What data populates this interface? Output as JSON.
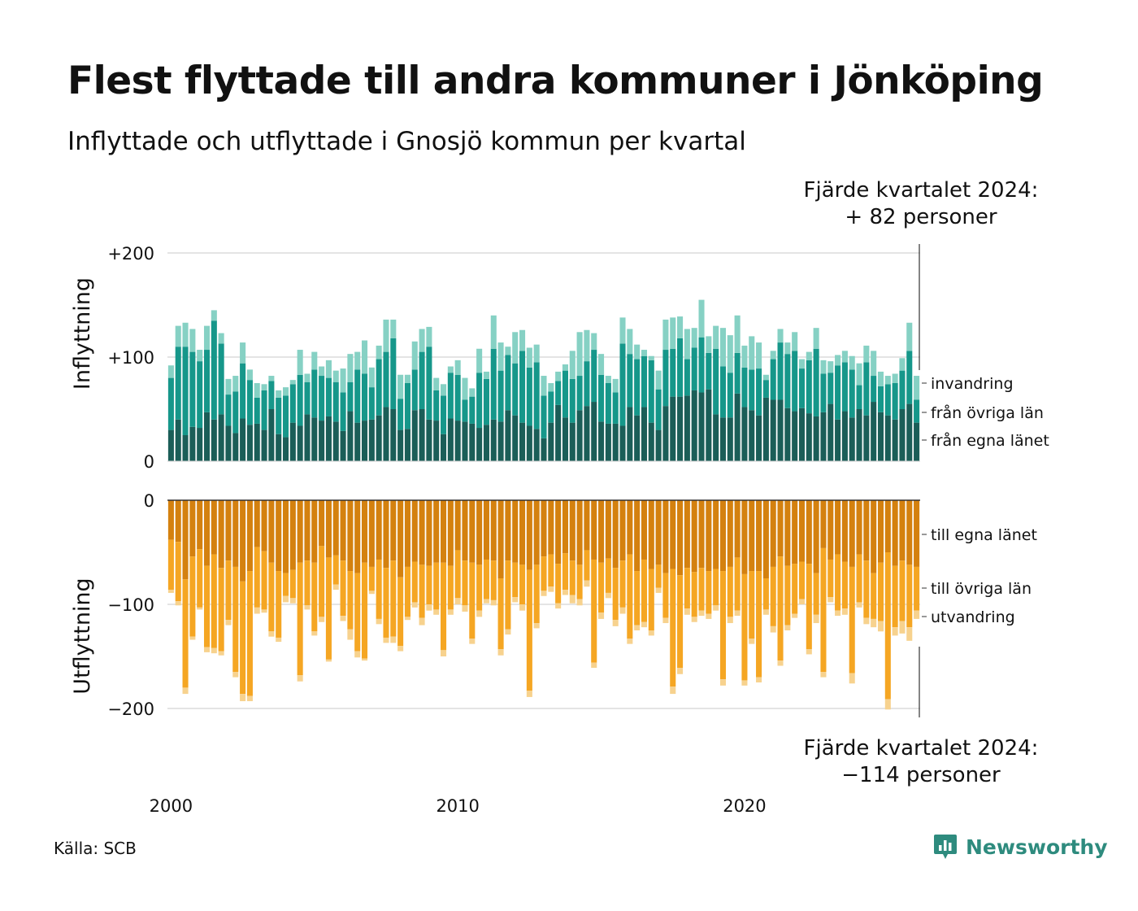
{
  "header": {
    "title": "Flest flyttade till andra kommuner i Jönköping",
    "subtitle": "Inflyttade och utflyttade i Gnosjö kommun per kvartal"
  },
  "annotations": {
    "top_line1": "Fjärde kvartalet 2024:",
    "top_line2": "+ 82 personer",
    "bottom_line1": "Fjärde kvartalet 2024:",
    "bottom_line2": "−114 personer"
  },
  "footer": {
    "source": "Källa: SCB",
    "logo": "Newsworthy"
  },
  "colors": {
    "in_egna": "#1b5e58",
    "in_ovriga": "#16978a",
    "in_invandring": "#86d1c4",
    "ut_egna": "#d4810f",
    "ut_ovriga": "#f5a623",
    "ut_utvandring": "#f7d28e",
    "grid": "#e4e4e4",
    "logo": "#2e8b7e"
  },
  "chart_data": [
    {
      "type": "bar",
      "stacked": true,
      "ylabel": "Inflyttning",
      "ylim": [
        0,
        200
      ],
      "yticks": [
        0,
        100,
        200
      ],
      "ytick_labels": [
        "0",
        "+100",
        "+200"
      ],
      "x_labels": [
        "2000",
        "2010",
        "2020"
      ],
      "x_start": 2000,
      "x_end": 2024.75,
      "series_labels": [
        "från egna länet",
        "från övriga län",
        "invandring"
      ],
      "series": [
        {
          "name": "från egna länet",
          "values": [
            30,
            40,
            25,
            33,
            32,
            47,
            40,
            45,
            34,
            27,
            41,
            35,
            36,
            30,
            50,
            26,
            23,
            37,
            34,
            45,
            42,
            39,
            43,
            38,
            29,
            48,
            37,
            39,
            40,
            44,
            52,
            50,
            30,
            31,
            49,
            50,
            40,
            39,
            26,
            41,
            39,
            38,
            36,
            32,
            35,
            40,
            38,
            49,
            44,
            37,
            34,
            31,
            22,
            37,
            54,
            42,
            37,
            49,
            53,
            57,
            38,
            36,
            36,
            34,
            52,
            44,
            52,
            37,
            30,
            53,
            62,
            62,
            63,
            68,
            66,
            69,
            45,
            42,
            42,
            65,
            52,
            49,
            44,
            61,
            59,
            59,
            51,
            48,
            51,
            46,
            43,
            47,
            55,
            40,
            48,
            42,
            50,
            44,
            57,
            47,
            44,
            40,
            50,
            55,
            37
          ]
        },
        {
          "name": "från övriga län",
          "values": [
            50,
            70,
            85,
            72,
            64,
            60,
            95,
            68,
            30,
            40,
            53,
            43,
            25,
            38,
            27,
            35,
            40,
            37,
            49,
            31,
            46,
            43,
            37,
            38,
            37,
            28,
            51,
            45,
            31,
            54,
            53,
            68,
            30,
            44,
            39,
            55,
            70,
            29,
            37,
            44,
            44,
            21,
            26,
            53,
            44,
            68,
            49,
            53,
            50,
            69,
            56,
            64,
            41,
            30,
            23,
            45,
            42,
            33,
            43,
            50,
            45,
            39,
            30,
            79,
            51,
            54,
            49,
            60,
            39,
            54,
            46,
            56,
            35,
            41,
            53,
            35,
            63,
            49,
            43,
            39,
            38,
            39,
            45,
            17,
            39,
            55,
            52,
            58,
            38,
            51,
            65,
            37,
            30,
            52,
            47,
            46,
            23,
            51,
            25,
            25,
            30,
            35,
            37,
            51,
            22
          ]
        },
        {
          "name": "invandring",
          "values": [
            12,
            20,
            23,
            22,
            11,
            23,
            10,
            10,
            15,
            15,
            20,
            10,
            14,
            6,
            5,
            7,
            8,
            4,
            24,
            8,
            17,
            9,
            17,
            11,
            23,
            27,
            17,
            32,
            19,
            13,
            31,
            18,
            23,
            8,
            27,
            22,
            19,
            12,
            11,
            6,
            14,
            21,
            8,
            23,
            7,
            32,
            27,
            8,
            30,
            20,
            19,
            17,
            19,
            8,
            9,
            6,
            27,
            42,
            30,
            16,
            20,
            7,
            13,
            25,
            24,
            14,
            6,
            4,
            18,
            29,
            30,
            21,
            29,
            19,
            36,
            16,
            22,
            37,
            36,
            36,
            21,
            32,
            25,
            5,
            8,
            13,
            11,
            18,
            9,
            8,
            20,
            13,
            11,
            10,
            11,
            13,
            21,
            16,
            24,
            14,
            8,
            9,
            12,
            27,
            23
          ]
        }
      ]
    },
    {
      "type": "bar",
      "stacked": true,
      "ylabel": "Utflyttning",
      "ylim": [
        -200,
        0
      ],
      "yticks": [
        0,
        -100,
        -200
      ],
      "ytick_labels": [
        "0",
        "−100",
        "−200"
      ],
      "x_labels": [
        "2000",
        "2010",
        "2020"
      ],
      "x_start": 2000,
      "x_end": 2024.75,
      "series_labels": [
        "till egna länet",
        "till övriga län",
        "utvandring"
      ],
      "series": [
        {
          "name": "till egna länet",
          "values": [
            -38,
            -40,
            -76,
            -54,
            -47,
            -63,
            -52,
            -65,
            -58,
            -64,
            -78,
            -68,
            -45,
            -49,
            -60,
            -68,
            -70,
            -67,
            -60,
            -58,
            -60,
            -44,
            -55,
            -53,
            -58,
            -68,
            -70,
            -60,
            -64,
            -57,
            -65,
            -58,
            -74,
            -64,
            -59,
            -62,
            -63,
            -60,
            -60,
            -63,
            -48,
            -58,
            -60,
            -62,
            -57,
            -58,
            -75,
            -58,
            -60,
            -62,
            -67,
            -62,
            -54,
            -52,
            -61,
            -51,
            -58,
            -62,
            -48,
            -57,
            -60,
            -56,
            -65,
            -58,
            -52,
            -68,
            -57,
            -66,
            -62,
            -70,
            -66,
            -72,
            -65,
            -69,
            -65,
            -68,
            -66,
            -68,
            -64,
            -55,
            -71,
            -68,
            -68,
            -75,
            -64,
            -54,
            -63,
            -61,
            -59,
            -61,
            -70,
            -46,
            -57,
            -52,
            -59,
            -64,
            -52,
            -58,
            -70,
            -60,
            -50,
            -63,
            -58,
            -62,
            -64
          ]
        },
        {
          "name": "till övriga län",
          "values": [
            -48,
            -57,
            -104,
            -77,
            -56,
            -78,
            -90,
            -80,
            -57,
            -101,
            -108,
            -120,
            -58,
            -56,
            -66,
            -64,
            -22,
            -27,
            -108,
            -43,
            -66,
            -68,
            -98,
            -28,
            -53,
            -56,
            -75,
            -92,
            -23,
            -57,
            -67,
            -73,
            -66,
            -48,
            -39,
            -51,
            -37,
            -45,
            -84,
            -42,
            -46,
            -43,
            -73,
            -44,
            -38,
            -38,
            -68,
            -66,
            -33,
            -38,
            -116,
            -56,
            -33,
            -31,
            -38,
            -35,
            -33,
            -33,
            -29,
            -99,
            -48,
            -33,
            -50,
            -45,
            -81,
            -52,
            -60,
            -59,
            -22,
            -43,
            -113,
            -89,
            -39,
            -43,
            -41,
            -41,
            -35,
            -104,
            -48,
            -51,
            -102,
            -65,
            -102,
            -30,
            -57,
            -100,
            -57,
            -48,
            -36,
            -82,
            -40,
            -119,
            -36,
            -54,
            -45,
            -102,
            -46,
            -55,
            -44,
            -56,
            -141,
            -59,
            -58,
            -60,
            -42
          ]
        },
        {
          "name": "utvandring",
          "values": [
            -3,
            -4,
            -6,
            -3,
            -2,
            -5,
            -5,
            -4,
            -5,
            -5,
            -7,
            -5,
            -6,
            -3,
            -5,
            -4,
            -6,
            -5,
            -6,
            -4,
            -4,
            -5,
            -2,
            -5,
            -5,
            -10,
            -6,
            -2,
            -3,
            -5,
            -5,
            -6,
            -5,
            -3,
            -5,
            -7,
            -6,
            -5,
            -6,
            -5,
            -6,
            -6,
            -5,
            -6,
            -4,
            -5,
            -6,
            -5,
            -5,
            -6,
            -6,
            -5,
            -5,
            -5,
            -5,
            -5,
            -8,
            -6,
            -6,
            -5,
            -6,
            -5,
            -6,
            -6,
            -5,
            -5,
            -5,
            -5,
            -5,
            -5,
            -7,
            -6,
            -6,
            -5,
            -5,
            -5,
            -5,
            -6,
            -6,
            -5,
            -5,
            -5,
            -5,
            -5,
            -6,
            -5,
            -5,
            -4,
            -5,
            -5,
            -8,
            -5,
            -5,
            -5,
            -6,
            -10,
            -5,
            -6,
            -8,
            -10,
            -10,
            -8,
            -12,
            -13,
            -8
          ]
        }
      ]
    }
  ]
}
